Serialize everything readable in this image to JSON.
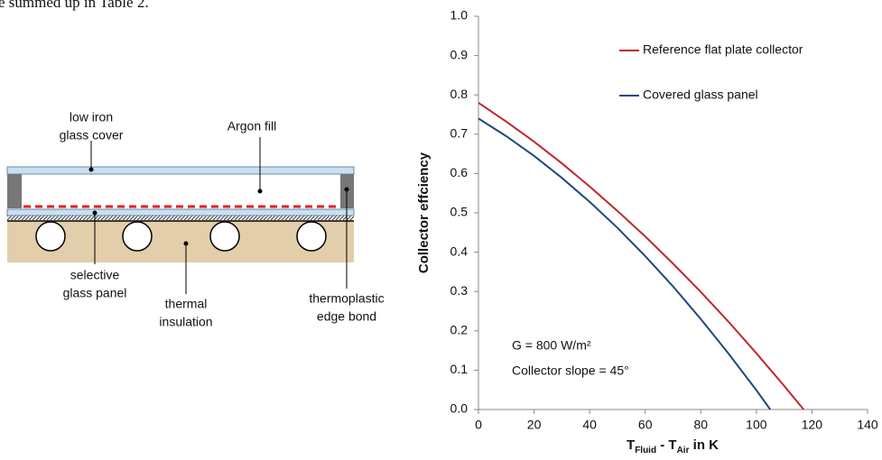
{
  "text_fragment": "e summed up in Table 2.",
  "diagram": {
    "labels": [
      {
        "lines": [
          "low iron",
          "glass cover"
        ]
      },
      {
        "lines": [
          "Argon fill"
        ]
      },
      {
        "lines": [
          "selective",
          "glass panel"
        ]
      },
      {
        "lines": [
          "thermal",
          "insulation"
        ]
      },
      {
        "lines": [
          "thermoplastic",
          "edge bond"
        ]
      }
    ]
  },
  "chart_data": {
    "type": "line",
    "ylabel": "Collector effciency",
    "xlabel": [
      "T",
      "Fluid",
      " - T",
      "Air",
      " in K"
    ],
    "xlim": [
      0,
      140
    ],
    "xticks": [
      0,
      20,
      40,
      60,
      80,
      100,
      120,
      140
    ],
    "ylim": [
      0,
      1
    ],
    "yticks": [
      {
        "value": 0,
        "label": "0.0"
      },
      0.1,
      0.2,
      0.3,
      0.4,
      0.5,
      0.6,
      0.7,
      0.8,
      0.9,
      {
        "value": 1,
        "label": "1.0"
      }
    ],
    "legend": "upper right",
    "series": [
      {
        "name": "Reference flat plate collector",
        "color": "#c0262d",
        "x": [
          0,
          10,
          20,
          30,
          40,
          50,
          60,
          70,
          80,
          90,
          100,
          110,
          117
        ],
        "values": [
          0.78,
          0.732,
          0.681,
          0.626,
          0.567,
          0.505,
          0.44,
          0.371,
          0.299,
          0.223,
          0.143,
          0.06,
          0
        ]
      },
      {
        "name": "Covered glass panel",
        "color": "#1f497d",
        "x": [
          0,
          10,
          20,
          30,
          40,
          50,
          60,
          70,
          80,
          90,
          100,
          105
        ],
        "values": [
          0.74,
          0.695,
          0.645,
          0.589,
          0.528,
          0.462,
          0.39,
          0.313,
          0.23,
          0.142,
          0.049,
          0
        ]
      }
    ],
    "annotations": [
      "G = 800 W/m²",
      "Collector slope = 45°"
    ]
  }
}
